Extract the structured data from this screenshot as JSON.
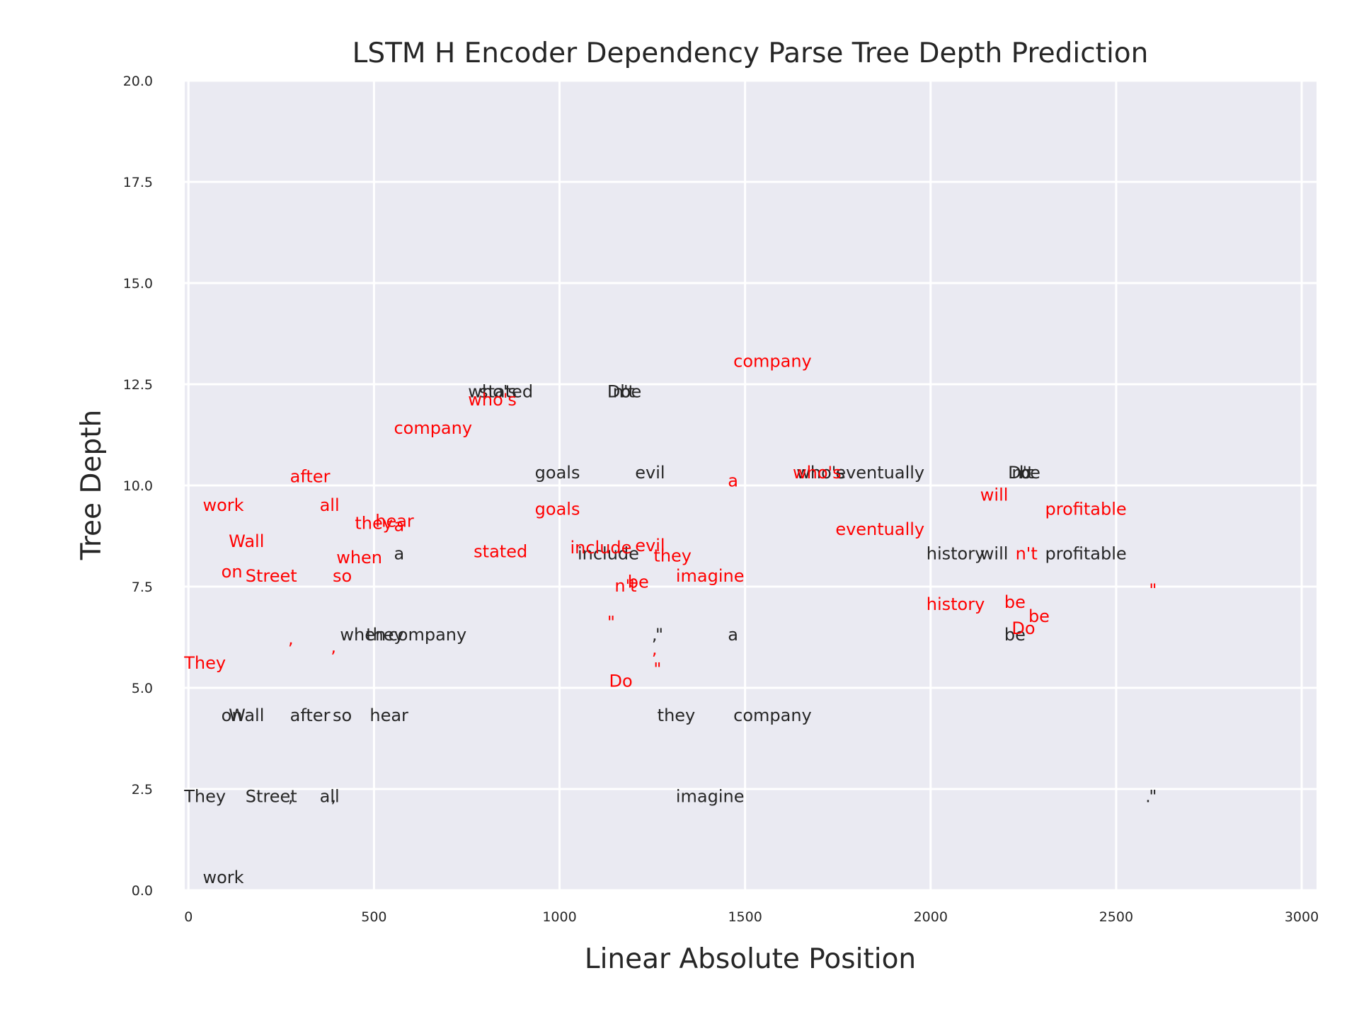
{
  "chart_data": {
    "type": "scatter",
    "title": "LSTM H Encoder Dependency Parse Tree Depth Prediction",
    "xlabel": "Linear Absolute Position",
    "ylabel": "Tree Depth",
    "xlim": [
      -10,
      3040
    ],
    "ylim": [
      0,
      20
    ],
    "xticks": [
      "0",
      "500",
      "1000",
      "1500",
      "2000",
      "2500",
      "3000"
    ],
    "xtick_values": [
      0,
      500,
      1000,
      1500,
      2000,
      2500,
      3000
    ],
    "yticks": [
      "0.0",
      "2.5",
      "5.0",
      "7.5",
      "10.0",
      "12.5",
      "15.0",
      "17.5",
      "20.0"
    ],
    "ytick_values": [
      0,
      2.5,
      5,
      7.5,
      10,
      12.5,
      15,
      17.5,
      20
    ],
    "grid": true,
    "colors": {
      "background": "#eaeaf2",
      "grid": "#ffffff",
      "gold": "#262626",
      "predicted": "#ff0000"
    },
    "series": [
      {
        "color": "#262626",
        "points": [
          {
            "label": "work",
            "x": 50,
            "y": 0
          },
          {
            "label": "They",
            "x": 0,
            "y": 2
          },
          {
            "label": "Wall",
            "x": 120,
            "y": 4
          },
          {
            "label": "on",
            "x": 100,
            "y": 4
          },
          {
            "label": "Street",
            "x": 165,
            "y": 2
          },
          {
            "label": "after",
            "x": 285,
            "y": 4
          },
          {
            "label": ",",
            "x": 280,
            "y": 2
          },
          {
            "label": "all",
            "x": 365,
            "y": 2
          },
          {
            "label": ",",
            "x": 395,
            "y": 2
          },
          {
            "label": "when",
            "x": 420,
            "y": 6
          },
          {
            "label": "so",
            "x": 400,
            "y": 4
          },
          {
            "label": "they",
            "x": 490,
            "y": 6
          },
          {
            "label": "hear",
            "x": 500,
            "y": 4
          },
          {
            "label": "company",
            "x": 550,
            "y": 6
          },
          {
            "label": "a",
            "x": 565,
            "y": 8
          },
          {
            "label": "who's",
            "x": 765,
            "y": 12
          },
          {
            "label": "stated",
            "x": 795,
            "y": 12
          },
          {
            "label": "goals",
            "x": 945,
            "y": 10
          },
          {
            "label": "include",
            "x": 1060,
            "y": 8
          },
          {
            "label": "Do",
            "x": 1140,
            "y": 12
          },
          {
            "label": "n't",
            "x": 1155,
            "y": 12
          },
          {
            "label": "be",
            "x": 1175,
            "y": 12
          },
          {
            "label": "evil",
            "x": 1215,
            "y": 10
          },
          {
            "label": "they",
            "x": 1275,
            "y": 4
          },
          {
            "label": "imagine",
            "x": 1325,
            "y": 2
          },
          {
            "label": ",",
            "x": 1260,
            "y": 6
          },
          {
            "label": "\"",
            "x": 1270,
            "y": 6
          },
          {
            "label": "company",
            "x": 1480,
            "y": 4
          },
          {
            "label": "a",
            "x": 1465,
            "y": 6
          },
          {
            "label": "who's",
            "x": 1650,
            "y": 10
          },
          {
            "label": "eventually",
            "x": 1755,
            "y": 10
          },
          {
            "label": "history",
            "x": 2000,
            "y": 8
          },
          {
            "label": "will",
            "x": 2145,
            "y": 8
          },
          {
            "label": "profitable",
            "x": 2320,
            "y": 8
          },
          {
            "label": "be",
            "x": 2210,
            "y": 6
          },
          {
            "label": "Do",
            "x": 2220,
            "y": 10
          },
          {
            "label": "n't",
            "x": 2230,
            "y": 10
          },
          {
            "label": "be",
            "x": 2250,
            "y": 10
          },
          {
            "label": ".",
            "x": 2590,
            "y": 2
          },
          {
            "label": "\"",
            "x": 2600,
            "y": 2
          }
        ]
      },
      {
        "color": "#ff0000",
        "points": [
          {
            "label": "They",
            "x": 0,
            "y": 5.3
          },
          {
            "label": "work",
            "x": 50,
            "y": 9.2
          },
          {
            "label": "Wall",
            "x": 120,
            "y": 8.3
          },
          {
            "label": "on",
            "x": 100,
            "y": 7.55
          },
          {
            "label": "Street",
            "x": 165,
            "y": 7.45
          },
          {
            "label": "after",
            "x": 285,
            "y": 9.9
          },
          {
            "label": ",",
            "x": 280,
            "y": 5.9
          },
          {
            "label": "all",
            "x": 365,
            "y": 9.2
          },
          {
            "label": "when",
            "x": 410,
            "y": 7.9
          },
          {
            "label": ",",
            "x": 395,
            "y": 5.7
          },
          {
            "label": "so",
            "x": 400,
            "y": 7.45
          },
          {
            "label": "they",
            "x": 460,
            "y": 8.75
          },
          {
            "label": "hear",
            "x": 515,
            "y": 8.8
          },
          {
            "label": "a",
            "x": 565,
            "y": 8.7
          },
          {
            "label": "company",
            "x": 565,
            "y": 11.1
          },
          {
            "label": "who's",
            "x": 765,
            "y": 11.8
          },
          {
            "label": "stated",
            "x": 780,
            "y": 8.05
          },
          {
            "label": "goals",
            "x": 945,
            "y": 9.1
          },
          {
            "label": "include",
            "x": 1040,
            "y": 8.15
          },
          {
            "label": "\"",
            "x": 1140,
            "y": 6.3
          },
          {
            "label": "Do",
            "x": 1145,
            "y": 4.85
          },
          {
            "label": "n't",
            "x": 1160,
            "y": 7.2
          },
          {
            "label": "be",
            "x": 1195,
            "y": 7.3
          },
          {
            "label": "evil",
            "x": 1215,
            "y": 8.2
          },
          {
            "label": "they",
            "x": 1265,
            "y": 7.95
          },
          {
            "label": "imagine",
            "x": 1325,
            "y": 7.45
          },
          {
            "label": ",",
            "x": 1260,
            "y": 5.65
          },
          {
            "label": "\"",
            "x": 1265,
            "y": 5.15
          },
          {
            "label": "company",
            "x": 1480,
            "y": 12.75
          },
          {
            "label": "a",
            "x": 1465,
            "y": 9.8
          },
          {
            "label": "who's",
            "x": 1640,
            "y": 10
          },
          {
            "label": "eventually",
            "x": 1755,
            "y": 8.6
          },
          {
            "label": "history",
            "x": 2000,
            "y": 6.75
          },
          {
            "label": "will",
            "x": 2145,
            "y": 9.45
          },
          {
            "label": "n't",
            "x": 2240,
            "y": 8
          },
          {
            "label": "be",
            "x": 2210,
            "y": 6.8
          },
          {
            "label": "be",
            "x": 2275,
            "y": 6.45
          },
          {
            "label": "Do",
            "x": 2230,
            "y": 6.15
          },
          {
            "label": "profitable",
            "x": 2320,
            "y": 9.1
          },
          {
            "label": "\"",
            "x": 2600,
            "y": 7.1
          }
        ]
      }
    ]
  }
}
